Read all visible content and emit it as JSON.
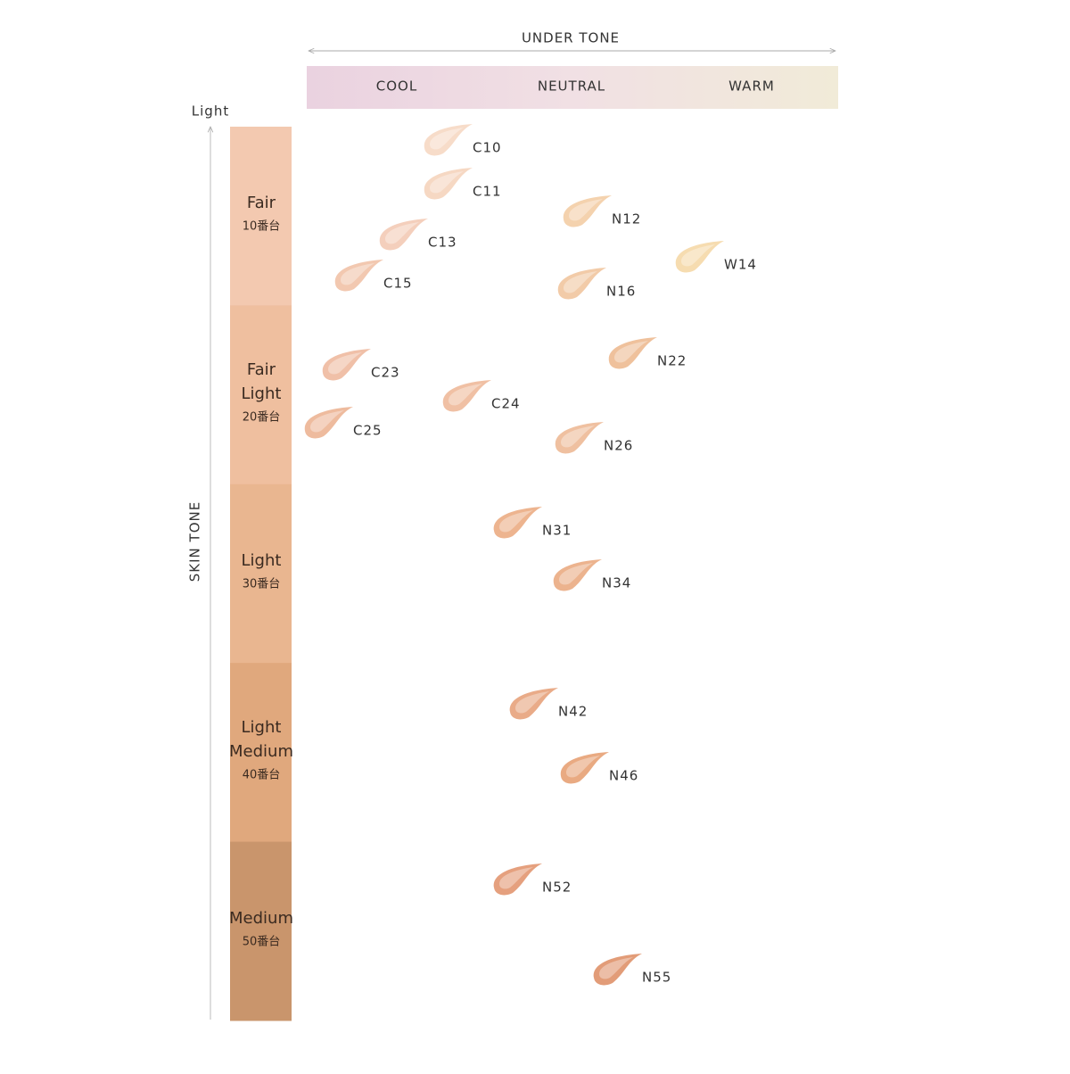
{
  "header": {
    "title": "UNDER TONE",
    "columns": [
      "COOL",
      "NEUTRAL",
      "WARM"
    ]
  },
  "axis": {
    "top_label": "Light",
    "title": "SKIN TONE"
  },
  "rows": [
    {
      "name": "Fair",
      "range": "10番台",
      "color": "#f3c9b0"
    },
    {
      "name": "Fair Light",
      "range": "20番台",
      "color": "#efbf9f"
    },
    {
      "name": "Light",
      "range": "30番台",
      "color": "#e9b690"
    },
    {
      "name": "Light Medium",
      "range": "40番台",
      "color": "#e0a87d"
    },
    {
      "name": "Medium",
      "range": "50番台",
      "color": "#c9956c"
    }
  ],
  "swatches": [
    {
      "label": "C10",
      "color": "#f7dcc9"
    },
    {
      "label": "C11",
      "color": "#f6d8c3"
    },
    {
      "label": "N12",
      "color": "#f4d2ae"
    },
    {
      "label": "C13",
      "color": "#f4cfbc"
    },
    {
      "label": "W14",
      "color": "#f6dcb0"
    },
    {
      "label": "C15",
      "color": "#f2c8b0"
    },
    {
      "label": "N16",
      "color": "#f2cba8"
    },
    {
      "label": "C23",
      "color": "#f0c0a8"
    },
    {
      "label": "N22",
      "color": "#efc19c"
    },
    {
      "label": "C24",
      "color": "#f0c0a4"
    },
    {
      "label": "C25",
      "color": "#eebb9e"
    },
    {
      "label": "N26",
      "color": "#efc0a0"
    },
    {
      "label": "N31",
      "color": "#edb48f"
    },
    {
      "label": "N34",
      "color": "#ecb38e"
    },
    {
      "label": "N42",
      "color": "#e9ab88"
    },
    {
      "label": "N46",
      "color": "#e9aa82"
    },
    {
      "label": "N52",
      "color": "#e5a07e"
    },
    {
      "label": "N55",
      "color": "#e29c78"
    }
  ]
}
